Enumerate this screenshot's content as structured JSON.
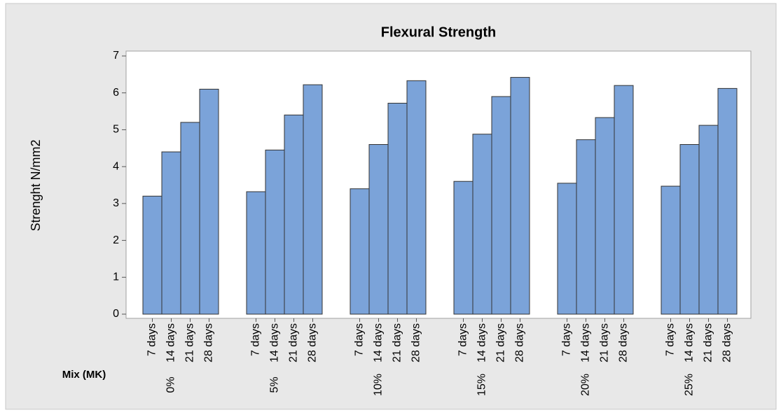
{
  "chart_data": {
    "type": "bar",
    "title": "Flexural Strength",
    "ylabel": "Strenght N/mm2",
    "group_axis_label": "Mix (MK)",
    "categories": [
      "7 days",
      "14 days",
      "21 days",
      "28 days"
    ],
    "groups": [
      {
        "label": "0%",
        "values": [
          3.2,
          4.4,
          5.2,
          6.1
        ]
      },
      {
        "label": "5%",
        "values": [
          3.32,
          4.45,
          5.4,
          6.22
        ]
      },
      {
        "label": "10%",
        "values": [
          3.4,
          4.6,
          5.72,
          6.33
        ]
      },
      {
        "label": "15%",
        "values": [
          3.6,
          4.88,
          5.9,
          6.42
        ]
      },
      {
        "label": "20%",
        "values": [
          3.55,
          4.73,
          5.33,
          6.2
        ]
      },
      {
        "label": "25%",
        "values": [
          3.47,
          4.6,
          5.12,
          6.12
        ]
      }
    ],
    "color": "#7ba3d9",
    "ylim": [
      0,
      7
    ],
    "yticks": [
      0,
      1,
      2,
      3,
      4,
      5,
      6,
      7
    ]
  }
}
